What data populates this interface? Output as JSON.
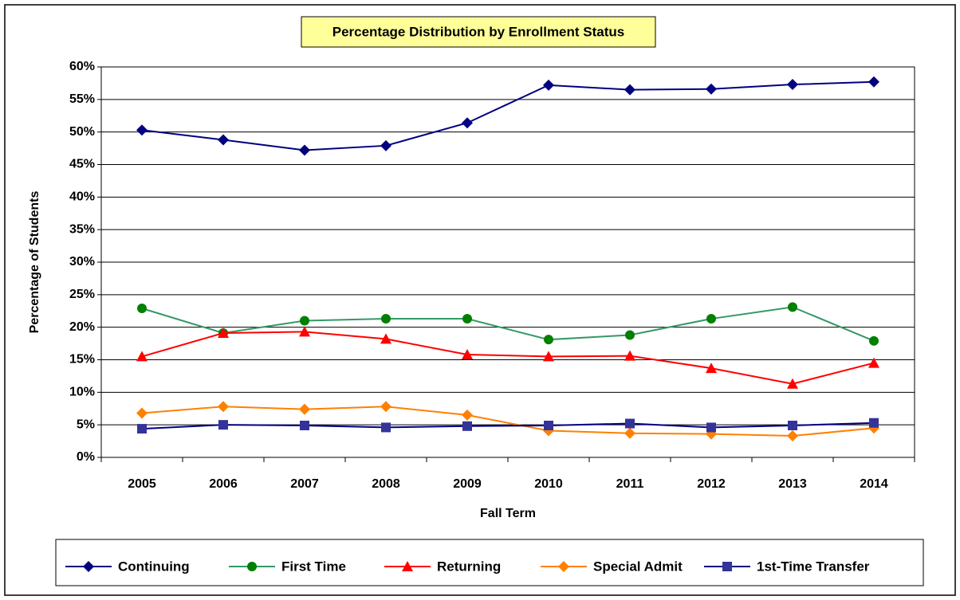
{
  "chart_data": {
    "type": "line",
    "title": "Percentage Distribution by Enrollment Status",
    "x_label": "Fall Term",
    "y_label": "Percentage of Students",
    "categories": [
      "2005",
      "2006",
      "2007",
      "2008",
      "2009",
      "2010",
      "2011",
      "2012",
      "2013",
      "2014"
    ],
    "series": [
      {
        "name": "Continuing",
        "color": "#000080",
        "marker_color": "#000080",
        "marker": "diamond",
        "values": [
          50.3,
          48.8,
          47.2,
          47.9,
          51.4,
          57.2,
          56.5,
          56.6,
          57.3,
          57.7
        ]
      },
      {
        "name": "First Time",
        "color": "#339966",
        "marker_color": "#008000",
        "marker": "circle",
        "values": [
          22.9,
          19.1,
          21.0,
          21.3,
          21.3,
          18.1,
          18.8,
          21.3,
          23.1,
          17.9
        ]
      },
      {
        "name": "Returning",
        "color": "#ff0000",
        "marker_color": "#ff0000",
        "marker": "triangle",
        "values": [
          15.5,
          19.1,
          19.3,
          18.2,
          15.8,
          15.5,
          15.6,
          13.7,
          11.3,
          14.5
        ]
      },
      {
        "name": "Special Admit",
        "color": "#ff8000",
        "marker_color": "#ff8000",
        "marker": "diamond",
        "values": [
          6.8,
          7.8,
          7.4,
          7.8,
          6.5,
          4.1,
          3.7,
          3.6,
          3.3,
          4.5
        ]
      },
      {
        "name": "1st-Time Transfer",
        "color": "#000080",
        "marker_color": "#333399",
        "marker": "square",
        "values": [
          4.4,
          5.0,
          4.9,
          4.6,
          4.8,
          4.9,
          5.2,
          4.6,
          4.9,
          5.3
        ]
      }
    ],
    "ylim": [
      0,
      60
    ],
    "yticks": [
      {
        "value": 0,
        "label": "0%"
      },
      {
        "value": 5,
        "label": "5%"
      },
      {
        "value": 10,
        "label": "10%"
      },
      {
        "value": 15,
        "label": "15%"
      },
      {
        "value": 20,
        "label": "20%"
      },
      {
        "value": 25,
        "label": "25%"
      },
      {
        "value": 30,
        "label": "30%"
      },
      {
        "value": 35,
        "label": "35%"
      },
      {
        "value": 40,
        "label": "40%"
      },
      {
        "value": 45,
        "label": "45%"
      },
      {
        "value": 50,
        "label": "50%"
      },
      {
        "value": 55,
        "label": "55%"
      },
      {
        "value": 60,
        "label": "60%"
      }
    ],
    "grid": true,
    "legend": "bottom"
  }
}
